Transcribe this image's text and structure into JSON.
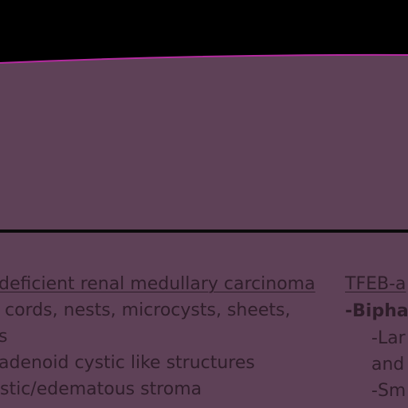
{
  "colors": {
    "slide_background": "#5e4157",
    "top_edge_accent": "#b52aa0",
    "border_black": "#000000",
    "text": "#2a1a26"
  },
  "left_column": {
    "lines": [
      "deficient renal medullary carcinoma",
      "cords, nests, microcysts, sheets,",
      "s",
      " adenoid cystic like structures",
      "stic/edematous stroma"
    ]
  },
  "right_column": {
    "heading": "TFEB-a",
    "subheading": "-Bipha",
    "lines": [
      "-Lar",
      "and",
      "-Sm"
    ]
  }
}
